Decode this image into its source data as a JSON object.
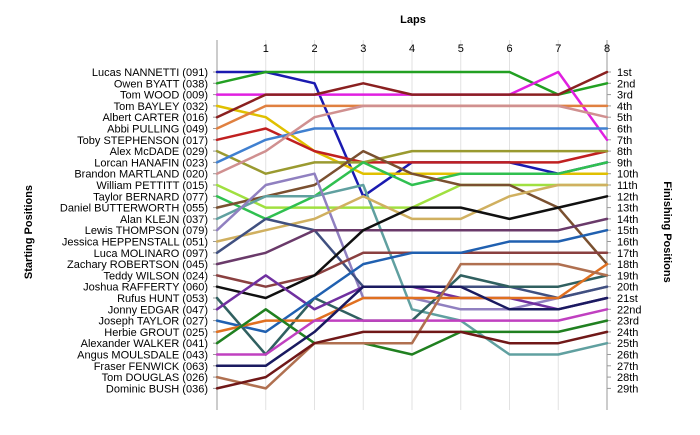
{
  "chart_data": {
    "type": "line",
    "title": "Laps",
    "xlabel": "Laps",
    "ylabel_left": "Starting Positions",
    "ylabel_right": "Finishing Positions",
    "x_ticks": [
      "1",
      "2",
      "3",
      "4",
      "5",
      "6",
      "7",
      "8"
    ],
    "ylim": [
      1,
      29
    ],
    "y_inverted": true,
    "grid": true,
    "drivers": [
      "Lucas NANNETTI (091)",
      "Owen BYATT (038)",
      "Tom WOOD (009)",
      "Tom BAYLEY (032)",
      "Albert CARTER (016)",
      "Abbi PULLING (049)",
      "Toby STEPHENSON (017)",
      "Alex McDADE (029)",
      "Lorcan HANAFIN (023)",
      "Brandon MARTLAND (020)",
      "William PETTITT (015)",
      "Taylor BERNARD (077)",
      "Daniel BUTTERWORTH (055)",
      "Alan KLEJN (037)",
      "Lewis THOMPSON (079)",
      "Jessica HEPPENSTALL (051)",
      "Luca MOLINARO (097)",
      "Zachary ROBERTSON (045)",
      "Teddy WILSON (024)",
      "Joshua RAFFERTY (060)",
      "Rufus HUNT (053)",
      "Jonny EDGAR (047)",
      "Joseph TAYLOR (027)",
      "Herbie GROUT (025)",
      "Alexander WALKER (041)",
      "Angus MOULSDALE (043)",
      "Fraser FENWICK (063)",
      "Tom DOUGLAS (026)",
      "Dominic BUSH (036)"
    ],
    "finishing_positions": [
      "1st",
      "2nd",
      "3rd",
      "4th",
      "5th",
      "6th",
      "7th",
      "8th",
      "9th",
      "10th",
      "11th",
      "12th",
      "13th",
      "14th",
      "15th",
      "16th",
      "17th",
      "18th",
      "19th",
      "20th",
      "21st",
      "22nd",
      "23rd",
      "24th",
      "25th",
      "26th",
      "27th",
      "28th",
      "29th"
    ],
    "series": [
      {
        "color": "#1a1ab0",
        "values": [
          1,
          1,
          2,
          12,
          9,
          9,
          9,
          10,
          9
        ]
      },
      {
        "color": "#22a022",
        "values": [
          2,
          1,
          1,
          1,
          1,
          1,
          1,
          3,
          2
        ]
      },
      {
        "color": "#e020e0",
        "values": [
          3,
          3,
          3,
          3,
          3,
          3,
          3,
          1,
          7
        ]
      },
      {
        "color": "#e0c000",
        "values": [
          4,
          5,
          8,
          10,
          10,
          10,
          10,
          10,
          10
        ]
      },
      {
        "color": "#8a2020",
        "values": [
          5,
          3,
          3,
          2,
          3,
          3,
          3,
          3,
          1
        ]
      },
      {
        "color": "#e08040",
        "values": [
          6,
          4,
          4,
          4,
          4,
          4,
          4,
          4,
          4
        ]
      },
      {
        "color": "#c02020",
        "values": [
          7,
          6,
          8,
          9,
          9,
          9,
          9,
          9,
          8
        ]
      },
      {
        "color": "#9a9a30",
        "values": [
          8,
          10,
          9,
          9,
          8,
          8,
          8,
          8,
          8
        ]
      },
      {
        "color": "#4080d0",
        "values": [
          9,
          7,
          6,
          6,
          6,
          6,
          6,
          6,
          6
        ]
      },
      {
        "color": "#d09090",
        "values": [
          10,
          8,
          5,
          4,
          4,
          4,
          4,
          4,
          5
        ]
      },
      {
        "color": "#a0e040",
        "values": [
          11,
          13,
          13,
          13,
          13,
          11,
          11,
          11,
          11
        ]
      },
      {
        "color": "#30c050",
        "values": [
          12,
          14,
          12,
          9,
          11,
          10,
          10,
          10,
          9
        ]
      },
      {
        "color": "#7a5030",
        "values": [
          13,
          12,
          11,
          8,
          10,
          11,
          11,
          13,
          18
        ]
      },
      {
        "color": "#60a0a0",
        "values": [
          14,
          12,
          12,
          11,
          22,
          23,
          26,
          26,
          25
        ]
      },
      {
        "color": "#9080c0",
        "values": [
          15,
          11,
          10,
          21,
          21,
          22,
          22,
          21,
          20
        ]
      },
      {
        "color": "#d0b060",
        "values": [
          16,
          15,
          14,
          12,
          14,
          14,
          12,
          11,
          11
        ]
      },
      {
        "color": "#405080",
        "values": [
          17,
          14,
          15,
          20,
          20,
          20,
          20,
          21,
          20
        ]
      },
      {
        "color": "#6a3a6a",
        "values": [
          18,
          17,
          15,
          15,
          15,
          15,
          15,
          15,
          14
        ]
      },
      {
        "color": "#8a4040",
        "values": [
          19,
          20,
          19,
          17,
          17,
          17,
          17,
          17,
          17
        ]
      },
      {
        "color": "#101010",
        "values": [
          20,
          21,
          19,
          15,
          13,
          13,
          14,
          13,
          12
        ]
      },
      {
        "color": "#306060",
        "values": [
          21,
          26,
          21,
          23,
          23,
          19,
          20,
          20,
          19
        ]
      },
      {
        "color": "#7030a0",
        "values": [
          22,
          19,
          22,
          20,
          20,
          21,
          21,
          22,
          21
        ]
      },
      {
        "color": "#2060b0",
        "values": [
          23,
          24,
          21,
          18,
          17,
          17,
          16,
          16,
          15
        ]
      },
      {
        "color": "#e07020",
        "values": [
          24,
          23,
          23,
          21,
          21,
          21,
          21,
          21,
          18
        ]
      },
      {
        "color": "#208020",
        "values": [
          25,
          22,
          25,
          25,
          26,
          24,
          24,
          24,
          23
        ]
      },
      {
        "color": "#c040c0",
        "values": [
          26,
          26,
          23,
          23,
          23,
          23,
          23,
          23,
          22
        ]
      },
      {
        "color": "#1a1a60",
        "values": [
          27,
          27,
          24,
          20,
          20,
          20,
          22,
          22,
          21
        ]
      },
      {
        "color": "#b07050",
        "values": [
          28,
          29,
          25,
          25,
          25,
          18,
          18,
          18,
          19
        ]
      },
      {
        "color": "#701818",
        "values": [
          29,
          28,
          25,
          24,
          24,
          24,
          25,
          25,
          24
        ]
      }
    ]
  }
}
